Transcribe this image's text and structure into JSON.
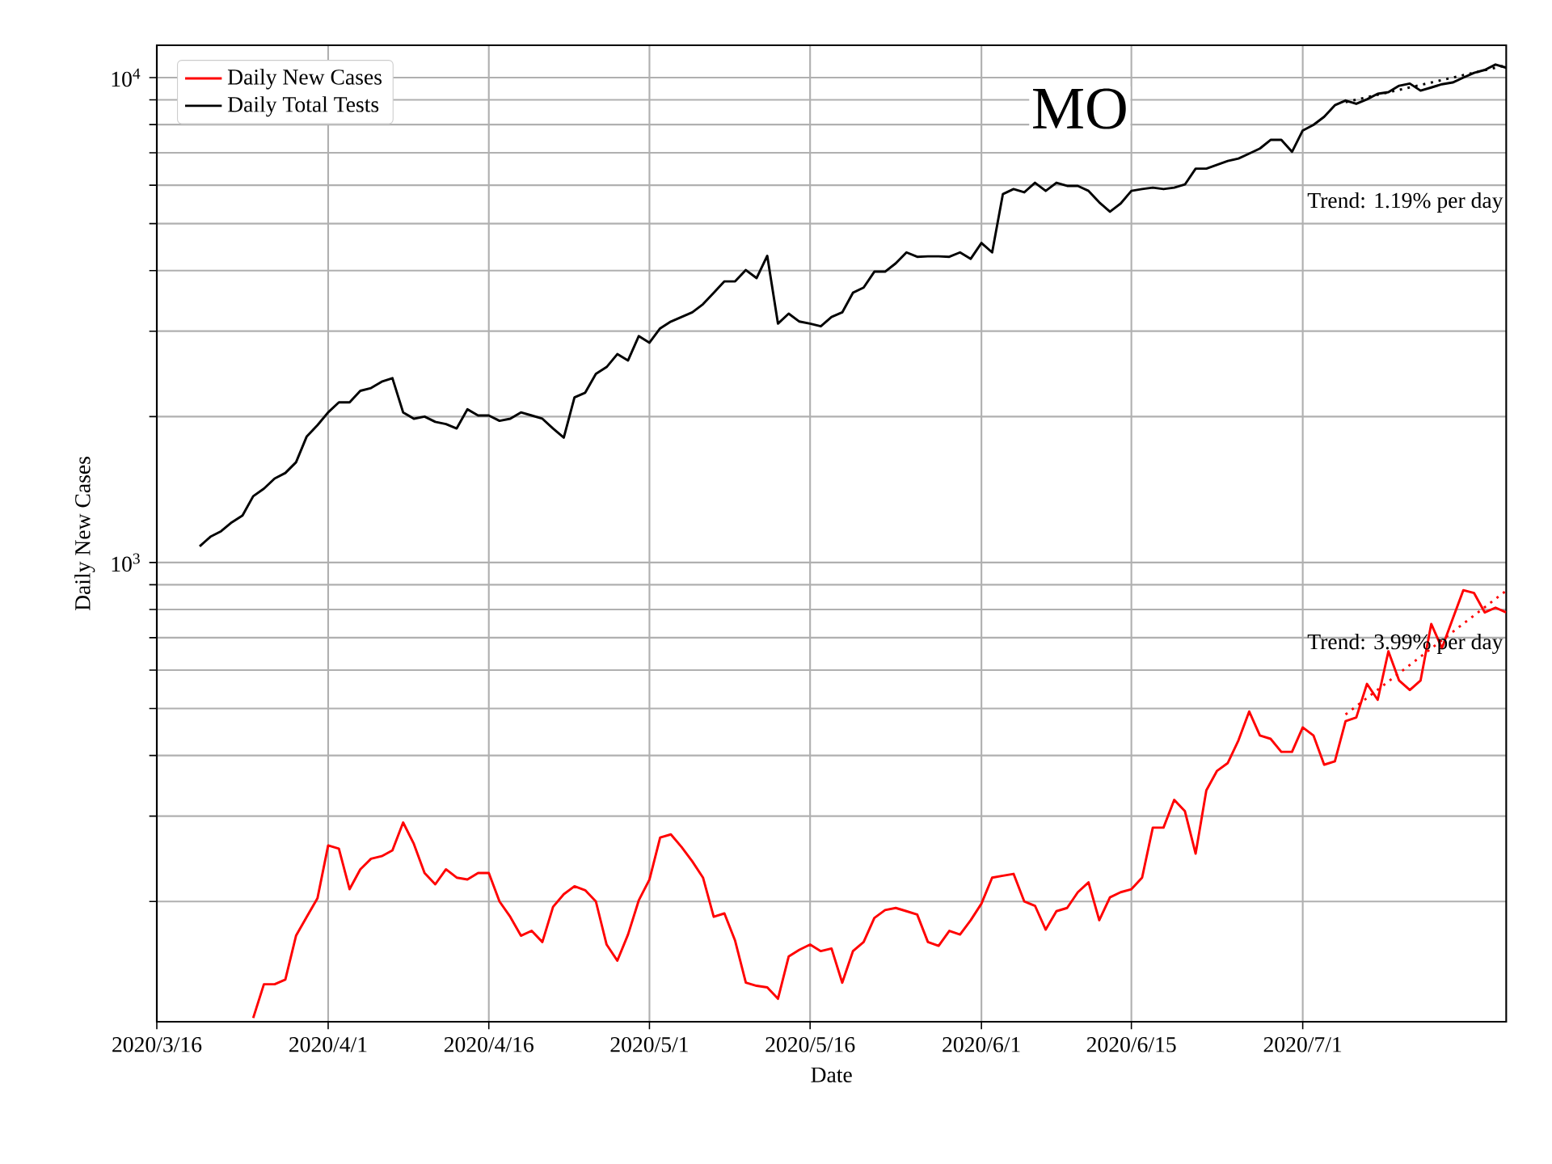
{
  "chart_data": {
    "type": "line",
    "title": "MO",
    "xlabel": "Date",
    "ylabel": "Daily New Cases",
    "log": "y",
    "grid": true,
    "legend": "top left",
    "xlim": [
      "2020-03-16",
      "2020-07-20"
    ],
    "xticks": [
      {
        "value": "2020-03-16",
        "label": "2020/3/16"
      },
      {
        "value": "2020-04-01",
        "label": "2020/4/1"
      },
      {
        "value": "2020-04-16",
        "label": "2020/4/16"
      },
      {
        "value": "2020-05-01",
        "label": "2020/5/1"
      },
      {
        "value": "2020-05-16",
        "label": "2020/5/16"
      },
      {
        "value": "2020-06-01",
        "label": "2020/6/1"
      },
      {
        "value": "2020-06-15",
        "label": "2020/6/15"
      },
      {
        "value": "2020-07-01",
        "label": "2020/7/1"
      }
    ],
    "ylim": [
      113,
      11660
    ],
    "yticks": [
      {
        "value": 200,
        "label": null
      },
      {
        "value": 300,
        "label": null
      },
      {
        "value": 400,
        "label": null
      },
      {
        "value": 500,
        "label": null
      },
      {
        "value": 600,
        "label": null
      },
      {
        "value": 700,
        "label": null
      },
      {
        "value": 800,
        "label": null
      },
      {
        "value": 900,
        "label": null
      },
      {
        "value": 1000,
        "label": "10$^{3}$"
      },
      {
        "value": 2000,
        "label": null
      },
      {
        "value": 3000,
        "label": null
      },
      {
        "value": 4000,
        "label": null
      },
      {
        "value": 5000,
        "label": null
      },
      {
        "value": 6000,
        "label": null
      },
      {
        "value": 7000,
        "label": null
      },
      {
        "value": 8000,
        "label": null
      },
      {
        "value": 9000,
        "label": null
      },
      {
        "value": 10000,
        "label": "10$^{4}$"
      }
    ],
    "x": [
      "2020-03-20",
      "2020-03-21",
      "2020-03-22",
      "2020-03-23",
      "2020-03-24",
      "2020-03-25",
      "2020-03-26",
      "2020-03-27",
      "2020-03-28",
      "2020-03-29",
      "2020-03-30",
      "2020-03-31",
      "2020-04-01",
      "2020-04-02",
      "2020-04-03",
      "2020-04-04",
      "2020-04-05",
      "2020-04-06",
      "2020-04-07",
      "2020-04-08",
      "2020-04-09",
      "2020-04-10",
      "2020-04-11",
      "2020-04-12",
      "2020-04-13",
      "2020-04-14",
      "2020-04-15",
      "2020-04-16",
      "2020-04-17",
      "2020-04-18",
      "2020-04-19",
      "2020-04-20",
      "2020-04-21",
      "2020-04-22",
      "2020-04-23",
      "2020-04-24",
      "2020-04-25",
      "2020-04-26",
      "2020-04-27",
      "2020-04-28",
      "2020-04-29",
      "2020-04-30",
      "2020-05-01",
      "2020-05-02",
      "2020-05-03",
      "2020-05-04",
      "2020-05-05",
      "2020-05-06",
      "2020-05-07",
      "2020-05-08",
      "2020-05-09",
      "2020-05-10",
      "2020-05-11",
      "2020-05-12",
      "2020-05-13",
      "2020-05-14",
      "2020-05-15",
      "2020-05-16",
      "2020-05-17",
      "2020-05-18",
      "2020-05-19",
      "2020-05-20",
      "2020-05-21",
      "2020-05-22",
      "2020-05-23",
      "2020-05-24",
      "2020-05-25",
      "2020-05-26",
      "2020-05-27",
      "2020-05-28",
      "2020-05-29",
      "2020-05-30",
      "2020-05-31",
      "2020-06-01",
      "2020-06-02",
      "2020-06-03",
      "2020-06-04",
      "2020-06-05",
      "2020-06-06",
      "2020-06-07",
      "2020-06-08",
      "2020-06-09",
      "2020-06-10",
      "2020-06-11",
      "2020-06-12",
      "2020-06-13",
      "2020-06-14",
      "2020-06-15",
      "2020-06-16",
      "2020-06-17",
      "2020-06-18",
      "2020-06-19",
      "2020-06-20",
      "2020-06-21",
      "2020-06-22",
      "2020-06-23",
      "2020-06-24",
      "2020-06-25",
      "2020-06-26",
      "2020-06-27",
      "2020-06-28",
      "2020-06-29",
      "2020-06-30",
      "2020-07-01",
      "2020-07-02",
      "2020-07-03",
      "2020-07-04",
      "2020-07-05",
      "2020-07-06",
      "2020-07-07",
      "2020-07-08",
      "2020-07-09",
      "2020-07-10",
      "2020-07-11",
      "2020-07-12",
      "2020-07-13",
      "2020-07-14",
      "2020-07-15",
      "2020-07-16",
      "2020-07-17",
      "2020-07-18",
      "2020-07-19",
      "2020-07-20"
    ],
    "series": [
      {
        "name": "Daily New Cases",
        "color": "#ff0000",
        "values": [
          null,
          null,
          null,
          null,
          null,
          115,
          135,
          135,
          138,
          170,
          186,
          203,
          261,
          257,
          212,
          233,
          245,
          248,
          255,
          291,
          263,
          229,
          217,
          233,
          224,
          222,
          229,
          229,
          200,
          186,
          170,
          174,
          165,
          195,
          207,
          215,
          211,
          200,
          163,
          151,
          171,
          201,
          222,
          271,
          275,
          259,
          242,
          224,
          186,
          189,
          166,
          136,
          134,
          133,
          126,
          154,
          159,
          163,
          158,
          160,
          136,
          158,
          165,
          185,
          192,
          194,
          191,
          188,
          165,
          162,
          174,
          171,
          183,
          198,
          224,
          226,
          228,
          200,
          196,
          175,
          191,
          194,
          209,
          219,
          183,
          204,
          209,
          212,
          224,
          284,
          284,
          324,
          307,
          251,
          339,
          372,
          386,
          430,
          493,
          440,
          433,
          407,
          407,
          457,
          440,
          383,
          389,
          471,
          479,
          562,
          521,
          656,
          571,
          546,
          571,
          747,
          666,
          765,
          877,
          865,
          789,
          807,
          789
        ]
      },
      {
        "name": "Daily Total Tests",
        "color": "#000000",
        "values": [
          1080,
          1130,
          1160,
          1210,
          1250,
          1370,
          1420,
          1490,
          1530,
          1610,
          1820,
          1920,
          2040,
          2140,
          2140,
          2260,
          2290,
          2360,
          2400,
          2040,
          1980,
          2000,
          1950,
          1930,
          1890,
          2070,
          2010,
          2010,
          1960,
          1980,
          2040,
          2010,
          1980,
          1890,
          1810,
          2190,
          2240,
          2450,
          2530,
          2690,
          2610,
          2930,
          2840,
          3040,
          3140,
          3210,
          3280,
          3410,
          3600,
          3800,
          3800,
          4010,
          3860,
          4290,
          3110,
          3260,
          3140,
          3110,
          3070,
          3210,
          3280,
          3600,
          3690,
          3980,
          3980,
          4140,
          4360,
          4270,
          4280,
          4280,
          4270,
          4360,
          4230,
          4560,
          4360,
          5750,
          5890,
          5800,
          6070,
          5840,
          6070,
          5980,
          5980,
          5840,
          5530,
          5290,
          5500,
          5840,
          5890,
          5930,
          5890,
          5930,
          6020,
          6490,
          6490,
          6610,
          6730,
          6810,
          6970,
          7140,
          7440,
          7440,
          7030,
          7780,
          7990,
          8300,
          8770,
          8970,
          8830,
          9020,
          9260,
          9330,
          9620,
          9720,
          9400,
          9540,
          9690,
          9770,
          10000,
          10230,
          10370,
          10640,
          10480
        ]
      },
      {
        "type": "line",
        "line_style": "dotted",
        "color": "#ff0000",
        "x": [
          "2020-07-05",
          "2020-07-20"
        ],
        "values": [
          486,
          875
        ]
      },
      {
        "type": "line",
        "line_style": "dotted",
        "color": "#000000",
        "x": [
          "2020-07-05",
          "2020-07-20"
        ],
        "values": [
          8900,
          10600
        ]
      }
    ],
    "annotations": [
      "Trend: 1.19% per day",
      "Trend: 3.99% per day"
    ]
  }
}
